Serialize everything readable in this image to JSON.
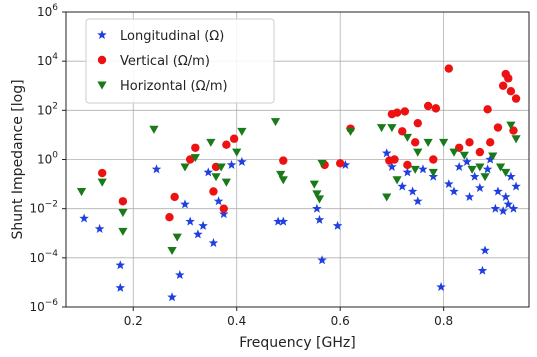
{
  "chart_data": {
    "type": "scatter",
    "title": "",
    "xlabel": "Frequency [GHz]",
    "ylabel": "Shunt Impedance [log]",
    "xlim": [
      0.07,
      0.965
    ],
    "ylim": [
      1e-06,
      1000000.0
    ],
    "y_scale": "log",
    "grid": true,
    "legend_position": "top-left",
    "x_ticks": [
      {
        "value": 0.2,
        "label": "0.2"
      },
      {
        "value": 0.4,
        "label": "0.4"
      },
      {
        "value": 0.6,
        "label": "0.6"
      },
      {
        "value": 0.8,
        "label": "0.8"
      }
    ],
    "y_ticks": [
      {
        "value": 1e-06,
        "base": "10",
        "exp": "−6"
      },
      {
        "value": 0.0001,
        "base": "10",
        "exp": "−4"
      },
      {
        "value": 0.01,
        "base": "10",
        "exp": "−2"
      },
      {
        "value": 1,
        "base": "10",
        "exp": "0"
      },
      {
        "value": 100,
        "base": "10",
        "exp": "2"
      },
      {
        "value": 10000,
        "base": "10",
        "exp": "4"
      },
      {
        "value": 1000000,
        "base": "10",
        "exp": "6"
      }
    ],
    "series": [
      {
        "name": "Longitudinal (Ω)",
        "color": "#1f3fe0",
        "marker": "star",
        "points": [
          [
            0.105,
            0.004
          ],
          [
            0.135,
            0.0015
          ],
          [
            0.175,
            5e-05
          ],
          [
            0.175,
            6e-06
          ],
          [
            0.245,
            0.4
          ],
          [
            0.275,
            2.5e-06
          ],
          [
            0.29,
            2e-05
          ],
          [
            0.3,
            0.015
          ],
          [
            0.31,
            0.003
          ],
          [
            0.325,
            0.0009
          ],
          [
            0.335,
            0.002
          ],
          [
            0.345,
            0.3
          ],
          [
            0.355,
            0.0004
          ],
          [
            0.365,
            0.02
          ],
          [
            0.375,
            0.006
          ],
          [
            0.39,
            0.6
          ],
          [
            0.41,
            0.8
          ],
          [
            0.48,
            0.003
          ],
          [
            0.49,
            0.003
          ],
          [
            0.555,
            0.01
          ],
          [
            0.56,
            0.0035
          ],
          [
            0.565,
            8e-05
          ],
          [
            0.595,
            0.002
          ],
          [
            0.61,
            0.6
          ],
          [
            0.69,
            1.8
          ],
          [
            0.7,
            0.5
          ],
          [
            0.72,
            0.08
          ],
          [
            0.73,
            0.3
          ],
          [
            0.74,
            0.05
          ],
          [
            0.75,
            0.02
          ],
          [
            0.76,
            0.4
          ],
          [
            0.78,
            0.2
          ],
          [
            0.795,
            6.5e-06
          ],
          [
            0.81,
            0.1
          ],
          [
            0.82,
            0.05
          ],
          [
            0.83,
            0.5
          ],
          [
            0.845,
            0.8
          ],
          [
            0.85,
            0.03
          ],
          [
            0.86,
            0.2
          ],
          [
            0.87,
            0.07
          ],
          [
            0.875,
            3e-05
          ],
          [
            0.88,
            0.0002
          ],
          [
            0.885,
            0.4
          ],
          [
            0.89,
            1.0
          ],
          [
            0.9,
            0.01
          ],
          [
            0.905,
            0.05
          ],
          [
            0.915,
            0.008
          ],
          [
            0.92,
            0.03
          ],
          [
            0.925,
            0.015
          ],
          [
            0.93,
            0.2
          ],
          [
            0.935,
            0.01
          ],
          [
            0.94,
            0.08
          ]
        ]
      },
      {
        "name": "Vertical (Ω/m)",
        "color": "#ee1111",
        "marker": "circle",
        "points": [
          [
            0.14,
            0.28
          ],
          [
            0.18,
            0.02
          ],
          [
            0.27,
            0.0045
          ],
          [
            0.28,
            0.03
          ],
          [
            0.31,
            1.0
          ],
          [
            0.32,
            3.0
          ],
          [
            0.355,
            0.05
          ],
          [
            0.36,
            0.5
          ],
          [
            0.375,
            0.01
          ],
          [
            0.38,
            4.0
          ],
          [
            0.395,
            7.0
          ],
          [
            0.49,
            0.9
          ],
          [
            0.57,
            0.6
          ],
          [
            0.6,
            0.7
          ],
          [
            0.62,
            18
          ],
          [
            0.695,
            0.9
          ],
          [
            0.7,
            70
          ],
          [
            0.705,
            1.0
          ],
          [
            0.71,
            80
          ],
          [
            0.72,
            14
          ],
          [
            0.725,
            90
          ],
          [
            0.73,
            0.6
          ],
          [
            0.745,
            5
          ],
          [
            0.75,
            30
          ],
          [
            0.77,
            150
          ],
          [
            0.78,
            1.0
          ],
          [
            0.785,
            120
          ],
          [
            0.81,
            5000
          ],
          [
            0.83,
            3.0
          ],
          [
            0.85,
            5
          ],
          [
            0.87,
            2
          ],
          [
            0.885,
            110
          ],
          [
            0.89,
            5
          ],
          [
            0.905,
            20
          ],
          [
            0.915,
            1000
          ],
          [
            0.92,
            3000
          ],
          [
            0.925,
            2000
          ],
          [
            0.93,
            600
          ],
          [
            0.935,
            15
          ],
          [
            0.94,
            300
          ]
        ]
      },
      {
        "name": "Horizontal (Ω/m)",
        "color": "#1a7a1a",
        "marker": "triangle",
        "points": [
          [
            0.1,
            0.05
          ],
          [
            0.14,
            0.12
          ],
          [
            0.18,
            0.007
          ],
          [
            0.18,
            0.0012
          ],
          [
            0.24,
            17
          ],
          [
            0.275,
            0.0002
          ],
          [
            0.285,
            0.0007
          ],
          [
            0.3,
            0.5
          ],
          [
            0.32,
            1.2
          ],
          [
            0.35,
            5
          ],
          [
            0.36,
            0.2
          ],
          [
            0.37,
            0.5
          ],
          [
            0.38,
            0.12
          ],
          [
            0.4,
            2.0
          ],
          [
            0.41,
            14
          ],
          [
            0.475,
            35
          ],
          [
            0.485,
            0.25
          ],
          [
            0.49,
            0.15
          ],
          [
            0.55,
            0.1
          ],
          [
            0.555,
            0.04
          ],
          [
            0.56,
            0.025
          ],
          [
            0.565,
            0.7
          ],
          [
            0.62,
            14
          ],
          [
            0.68,
            20
          ],
          [
            0.69,
            0.03
          ],
          [
            0.7,
            20
          ],
          [
            0.71,
            0.15
          ],
          [
            0.73,
            8
          ],
          [
            0.745,
            0.4
          ],
          [
            0.75,
            2.0
          ],
          [
            0.77,
            5
          ],
          [
            0.78,
            0.3
          ],
          [
            0.8,
            5
          ],
          [
            0.82,
            2.0
          ],
          [
            0.84,
            1.5
          ],
          [
            0.855,
            0.4
          ],
          [
            0.87,
            0.5
          ],
          [
            0.88,
            0.2
          ],
          [
            0.895,
            1.4
          ],
          [
            0.91,
            0.5
          ],
          [
            0.92,
            0.3
          ],
          [
            0.93,
            25
          ],
          [
            0.94,
            7
          ]
        ]
      }
    ]
  }
}
